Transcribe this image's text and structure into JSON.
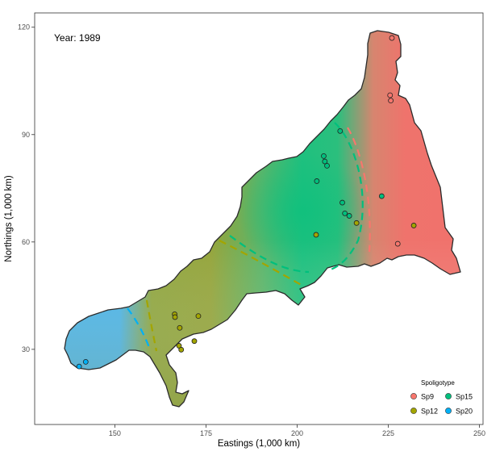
{
  "annotation": {
    "year_label": "Year: 1989"
  },
  "axes": {
    "xlabel": "Eastings (1,000 km)",
    "ylabel": "Northings (1,000 km)",
    "x_ticks": [
      "150",
      "175",
      "200",
      "225",
      "250"
    ],
    "y_ticks": [
      "30",
      "60",
      "90",
      "120"
    ],
    "xlim": [
      128,
      251
    ],
    "ylim": [
      9,
      124
    ]
  },
  "legend": {
    "title": "Spoligotype",
    "placement": "bottom-right",
    "items": [
      {
        "label": "Sp9",
        "color": "#F8766D"
      },
      {
        "label": "Sp15",
        "color": "#00BF7D"
      },
      {
        "label": "Sp12",
        "color": "#A3A500"
      },
      {
        "label": "Sp20",
        "color": "#00B0F6"
      }
    ]
  },
  "map_features": {
    "territory_fill_colors": {
      "Sp9": "#f0726c",
      "Sp15": "#22c07f",
      "Sp12": "#94a43b",
      "Sp20": "#4ab3ea"
    },
    "boundary_dashes": [
      {
        "between": [
          "Sp15",
          "Sp9"
        ],
        "color": "#F8766D"
      },
      {
        "between": [
          "Sp9",
          "Sp15"
        ],
        "color": "#00BF7D"
      },
      {
        "between": [
          "Sp12",
          "Sp15"
        ],
        "color": "#00BF7D"
      },
      {
        "between": [
          "Sp15",
          "Sp12"
        ],
        "color": "#A3A500"
      },
      {
        "between": [
          "Sp20",
          "Sp12"
        ],
        "color": "#A3A500"
      },
      {
        "between": [
          "Sp12",
          "Sp20"
        ],
        "color": "#00B0F6"
      }
    ]
  },
  "chart_data": {
    "type": "scatter",
    "title": "",
    "xlabel": "Eastings (1,000 km)",
    "ylabel": "Northings (1,000 km)",
    "xlim": [
      128,
      251
    ],
    "ylim": [
      9,
      124
    ],
    "grid": false,
    "legend_placement": "bottom-right",
    "series": [
      {
        "name": "Sp9",
        "color": "#F8766D",
        "points": [
          {
            "x": 226,
            "y": 117
          },
          {
            "x": 225.5,
            "y": 101
          },
          {
            "x": 225.7,
            "y": 99.5
          },
          {
            "x": 227.6,
            "y": 59.5
          }
        ]
      },
      {
        "name": "Sp15",
        "color": "#00BF7D",
        "points": [
          {
            "x": 211.8,
            "y": 91
          },
          {
            "x": 207.3,
            "y": 84
          },
          {
            "x": 207.6,
            "y": 82.5
          },
          {
            "x": 208.2,
            "y": 81.3
          },
          {
            "x": 205.4,
            "y": 77
          },
          {
            "x": 212.4,
            "y": 71
          },
          {
            "x": 213.1,
            "y": 68
          },
          {
            "x": 214.3,
            "y": 67.3
          },
          {
            "x": 223.2,
            "y": 72.8
          }
        ]
      },
      {
        "name": "Sp12",
        "color": "#A3A500",
        "points": [
          {
            "x": 205.2,
            "y": 62
          },
          {
            "x": 216.3,
            "y": 65.3
          },
          {
            "x": 232,
            "y": 64.6
          },
          {
            "x": 166.4,
            "y": 39.8
          },
          {
            "x": 166.5,
            "y": 39
          },
          {
            "x": 172.9,
            "y": 39.3
          },
          {
            "x": 167.8,
            "y": 36
          },
          {
            "x": 167.6,
            "y": 31
          },
          {
            "x": 168.2,
            "y": 29.9
          },
          {
            "x": 171.8,
            "y": 32.3
          }
        ]
      },
      {
        "name": "Sp20",
        "color": "#00B0F6",
        "points": [
          {
            "x": 142,
            "y": 26.5
          },
          {
            "x": 140.2,
            "y": 25.2
          }
        ]
      }
    ]
  }
}
